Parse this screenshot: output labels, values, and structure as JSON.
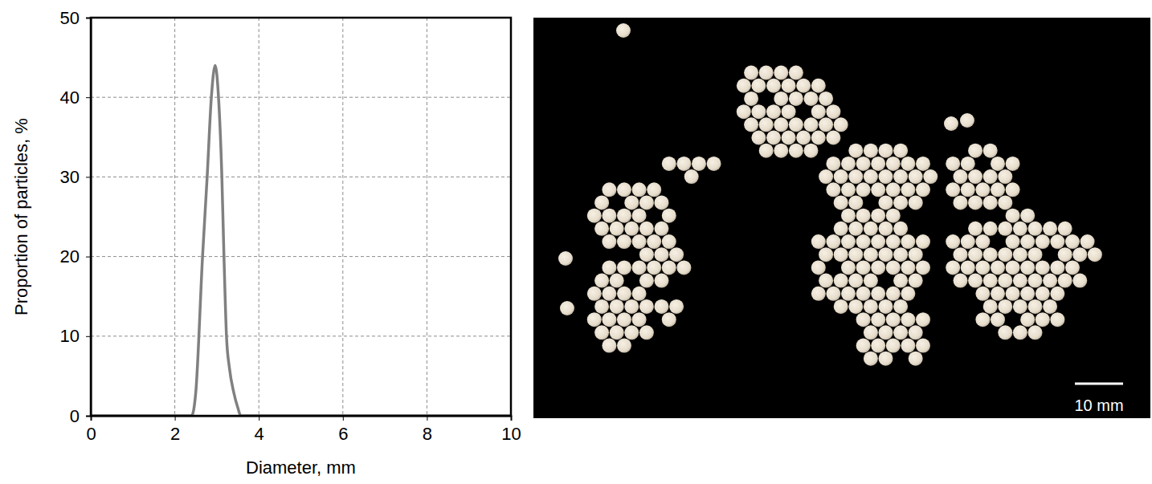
{
  "chart_data": {
    "type": "line",
    "x_label": "Diameter, mm",
    "y_label": "Proportion of particles, %",
    "x": [
      0,
      2.4,
      2.5,
      2.66,
      2.77,
      2.87,
      2.96,
      3.04,
      3.12,
      3.17,
      3.23,
      3.3,
      3.4,
      3.5,
      3.57,
      10
    ],
    "values": [
      0,
      0,
      3,
      20,
      30,
      40,
      44,
      40,
      30,
      20,
      10,
      6,
      3,
      1,
      0,
      0
    ],
    "color": "#808080",
    "xlim": [
      0,
      10
    ],
    "xticks": [
      0,
      2,
      4,
      6,
      8,
      10
    ],
    "ylim": [
      0,
      50
    ],
    "yticks": [
      0,
      10,
      20,
      30,
      40,
      50
    ],
    "grid": true
  },
  "image_panel": {
    "scale_bar_label": "10 mm"
  }
}
